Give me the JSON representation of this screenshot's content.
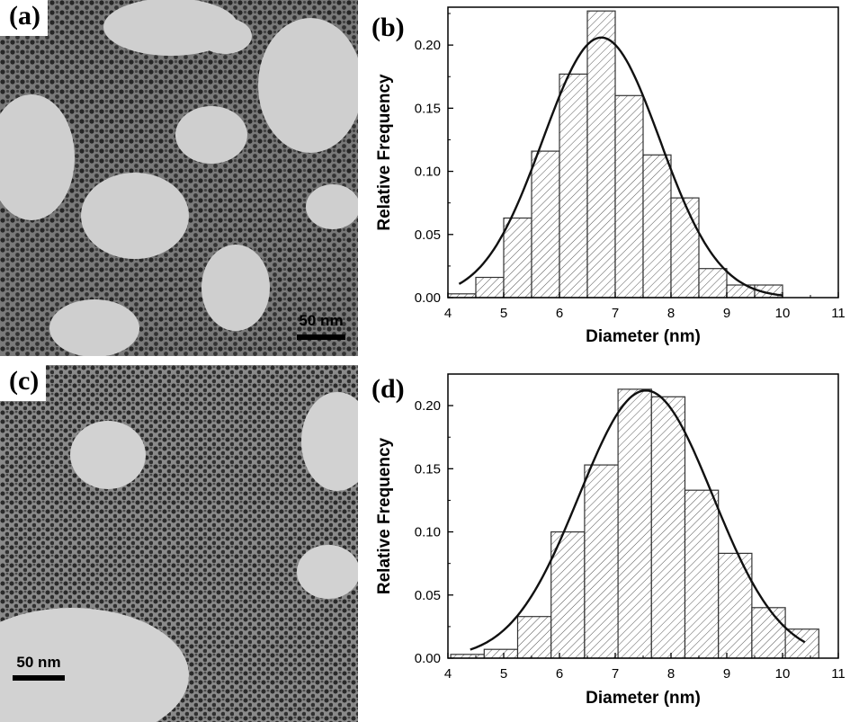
{
  "panels": {
    "a": {
      "label": "(a)",
      "scale_bar": "50 nm"
    },
    "b": {
      "label": "(b)"
    },
    "c": {
      "label": "(c)",
      "scale_bar": "50 nm"
    },
    "d": {
      "label": "(d)"
    }
  },
  "chart_data": [
    {
      "panel": "b",
      "type": "bar",
      "xlabel": "Diameter (nm)",
      "ylabel": "Relative Frequency",
      "xlim": [
        4,
        11
      ],
      "ylim": [
        0,
        0.23
      ],
      "xticks": [
        "4",
        "5",
        "6",
        "7",
        "8",
        "9",
        "10",
        "11"
      ],
      "yticks": [
        "0.00",
        "0.05",
        "0.10",
        "0.15",
        "0.20"
      ],
      "bin_width": 0.5,
      "bin_centers": [
        4.25,
        4.75,
        5.25,
        5.75,
        6.25,
        6.75,
        7.25,
        7.75,
        8.25,
        8.75,
        9.25,
        9.75
      ],
      "values": [
        0.003,
        0.016,
        0.063,
        0.116,
        0.177,
        0.227,
        0.16,
        0.113,
        0.079,
        0.023,
        0.01,
        0.01
      ],
      "fit": {
        "type": "gaussian",
        "mean": 6.75,
        "sigma": 1.05,
        "amplitude": 0.206,
        "range": [
          4.2,
          10.0
        ]
      },
      "bar_fill": "hatched",
      "grid": false
    },
    {
      "panel": "d",
      "type": "bar",
      "xlabel": "Diameter (nm)",
      "ylabel": "Relative Frequency",
      "xlim": [
        4,
        11
      ],
      "ylim": [
        0,
        0.225
      ],
      "xticks": [
        "4",
        "5",
        "6",
        "7",
        "8",
        "9",
        "10",
        "11"
      ],
      "yticks": [
        "0.00",
        "0.05",
        "0.10",
        "0.15",
        "0.20"
      ],
      "bin_width": 0.6,
      "bin_centers": [
        4.35,
        4.95,
        5.55,
        6.15,
        6.75,
        7.35,
        7.95,
        8.55,
        9.15,
        9.75,
        10.35
      ],
      "values": [
        0.003,
        0.007,
        0.033,
        0.1,
        0.153,
        0.213,
        0.207,
        0.133,
        0.083,
        0.04,
        0.023
      ],
      "fit": {
        "type": "gaussian",
        "mean": 7.55,
        "sigma": 1.2,
        "amplitude": 0.212,
        "range": [
          4.4,
          10.4
        ]
      },
      "bar_fill": "hatched",
      "grid": false
    }
  ]
}
